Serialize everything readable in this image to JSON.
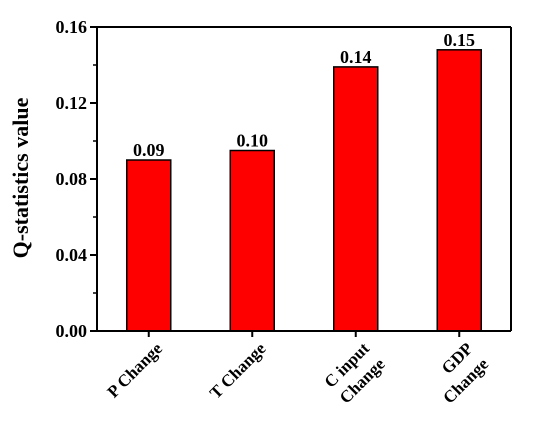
{
  "chart_data": {
    "type": "bar",
    "categories": [
      [
        "P Change"
      ],
      [
        "T Change"
      ],
      [
        "C input",
        "Change"
      ],
      [
        "GDP",
        "Change"
      ]
    ],
    "values": [
      0.09,
      0.095,
      0.139,
      0.148
    ],
    "data_labels": [
      "0.09",
      "0.10",
      "0.14",
      "0.15"
    ],
    "title": "",
    "xlabel": "",
    "ylabel": "Q-statistics value",
    "ylim": [
      0,
      0.16
    ],
    "yticks": [
      0.0,
      0.04,
      0.08,
      0.12,
      0.16
    ],
    "ytick_labels": [
      "0.00",
      "0.04",
      "0.08",
      "0.12",
      "0.16"
    ],
    "bar_color": "#ff0000",
    "bar_edge_color": "#000000",
    "grid": false,
    "legend": "none"
  }
}
